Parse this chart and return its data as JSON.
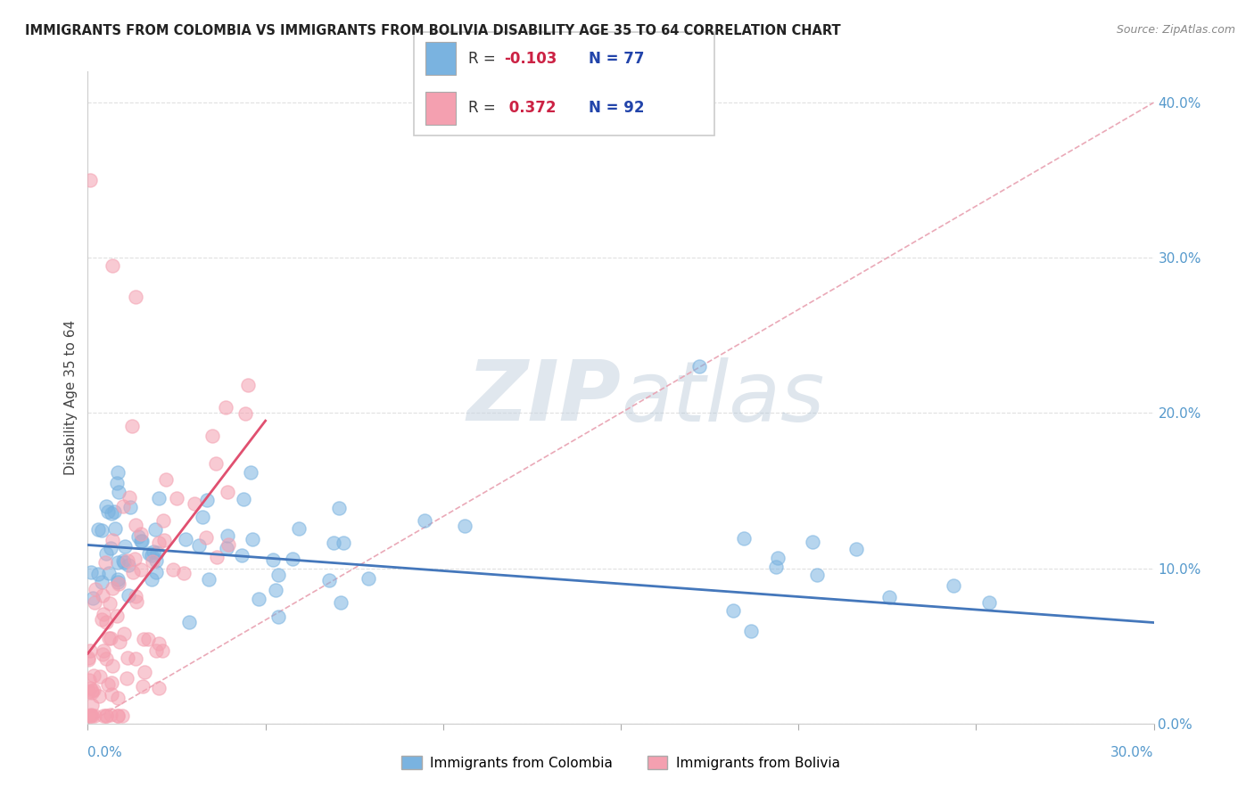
{
  "title": "IMMIGRANTS FROM COLOMBIA VS IMMIGRANTS FROM BOLIVIA DISABILITY AGE 35 TO 64 CORRELATION CHART",
  "source": "Source: ZipAtlas.com",
  "ylabel": "Disability Age 35 to 64",
  "xlim": [
    0.0,
    0.3
  ],
  "ylim": [
    0.0,
    0.42
  ],
  "legend1_R": "-0.103",
  "legend1_N": "77",
  "legend2_R": "0.372",
  "legend2_N": "92",
  "colombia_color": "#7ab3e0",
  "bolivia_color": "#f4a0b0",
  "colombia_line_color": "#4477bb",
  "bolivia_line_color": "#e05070",
  "ref_line_color": "#e8a0b0",
  "watermark_color": "#d0dce8",
  "title_color": "#222222",
  "source_color": "#888888",
  "tick_color": "#5599cc",
  "grid_color": "#e0e0e0",
  "legend_text_color": "#2244aa",
  "legend_R_color": "#cc2244",
  "y_ticks": [
    0.0,
    0.1,
    0.2,
    0.3,
    0.4
  ],
  "y_tick_labels": [
    "0.0%",
    "10.0%",
    "20.0%",
    "30.0%",
    "40.0%"
  ],
  "x_tick_labels_bottom": [
    "0.0%",
    "30.0%"
  ],
  "x_tick_positions_bottom": [
    0.0,
    0.3
  ]
}
